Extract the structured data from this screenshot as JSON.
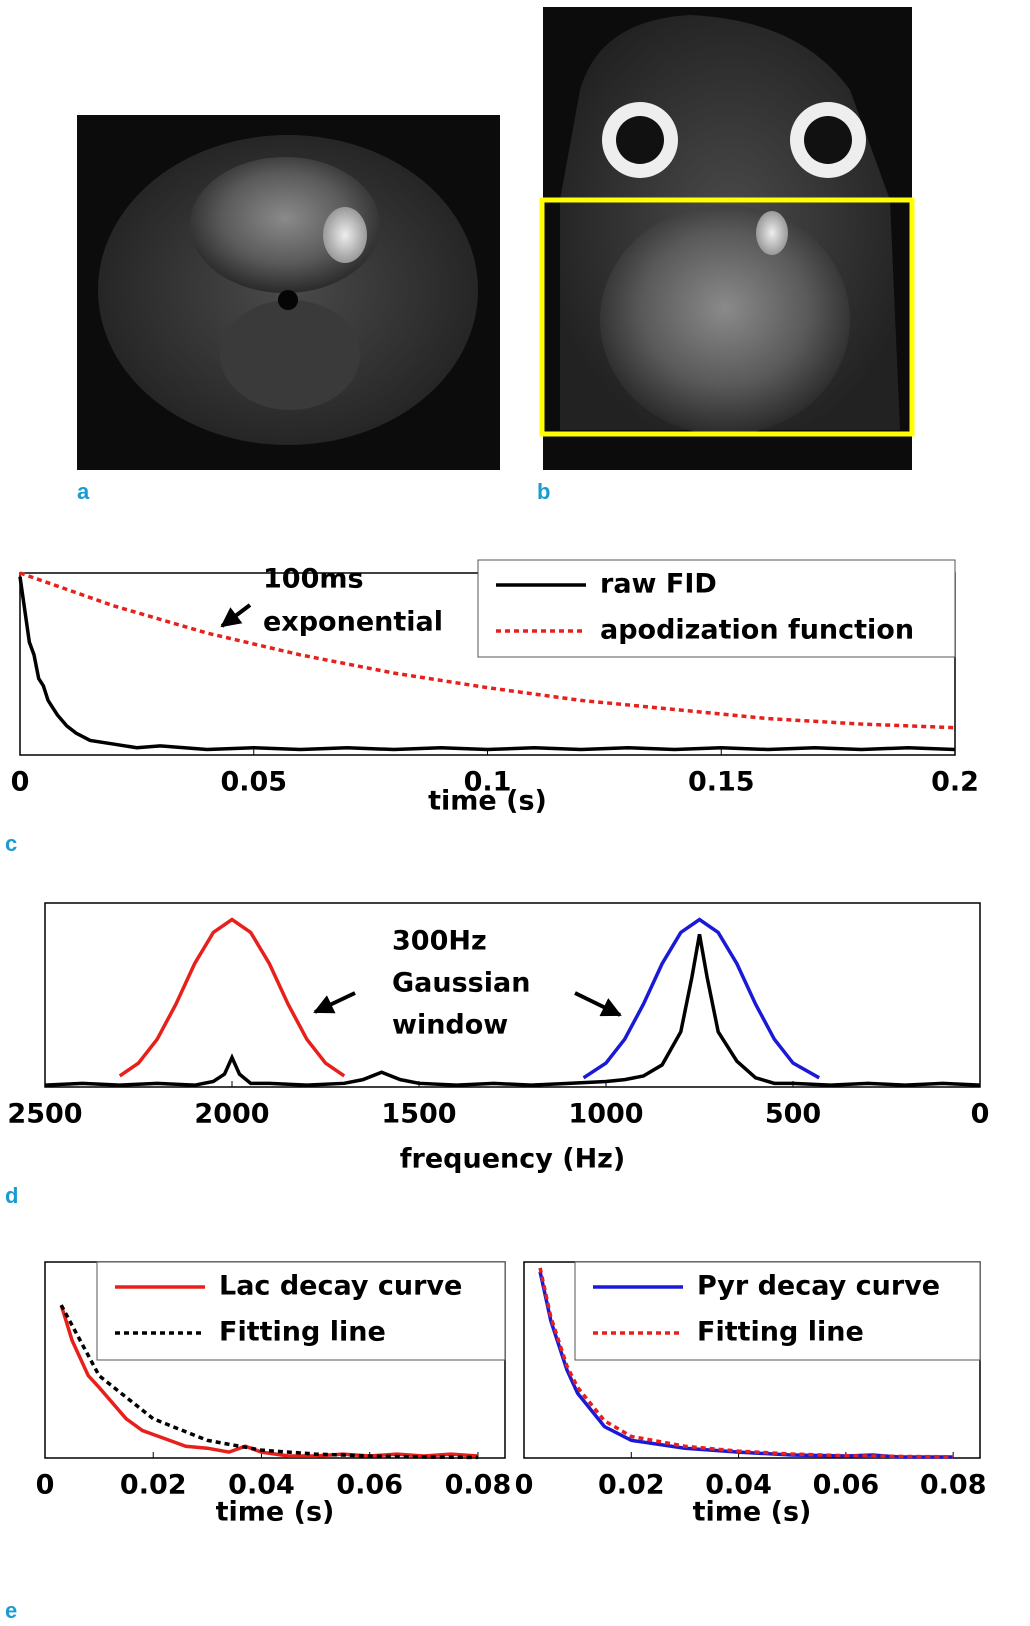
{
  "panel_labels": [
    "a",
    "b",
    "c",
    "d",
    "e"
  ],
  "chart_data": [
    {
      "type": "line",
      "xlabel": "time (s)",
      "annotation": [
        "100ms",
        "exponential"
      ],
      "xlim": [
        0,
        0.2
      ],
      "ylim": [
        0,
        1
      ],
      "xticks": [
        0,
        0.05,
        0.1,
        0.15,
        0.2
      ],
      "legend": "upper right",
      "series": [
        {
          "name": "raw FID",
          "color": "#000000",
          "style": "solid",
          "x": [
            0,
            0.001,
            0.002,
            0.003,
            0.004,
            0.005,
            0.006,
            0.008,
            0.01,
            0.012,
            0.015,
            0.02,
            0.025,
            0.03,
            0.04,
            0.05,
            0.06,
            0.07,
            0.08,
            0.09,
            0.1,
            0.11,
            0.12,
            0.13,
            0.14,
            0.15,
            0.16,
            0.17,
            0.18,
            0.19,
            0.2
          ],
          "values": [
            0.98,
            0.8,
            0.62,
            0.55,
            0.42,
            0.38,
            0.3,
            0.22,
            0.16,
            0.12,
            0.08,
            0.06,
            0.04,
            0.05,
            0.03,
            0.04,
            0.03,
            0.04,
            0.03,
            0.04,
            0.03,
            0.04,
            0.03,
            0.04,
            0.03,
            0.04,
            0.03,
            0.04,
            0.03,
            0.04,
            0.03
          ]
        },
        {
          "name": "apodization function",
          "color": "#e8201c",
          "style": "dotted",
          "x": [
            0,
            0.02,
            0.04,
            0.06,
            0.08,
            0.1,
            0.12,
            0.14,
            0.16,
            0.18,
            0.2
          ],
          "values": [
            1,
            0.82,
            0.67,
            0.55,
            0.45,
            0.37,
            0.3,
            0.25,
            0.2,
            0.17,
            0.15
          ]
        }
      ]
    },
    {
      "type": "line",
      "xlabel": "frequency (Hz)",
      "annotation": [
        "300Hz",
        "Gaussian",
        "window"
      ],
      "xlim": [
        2500,
        0
      ],
      "ylim": [
        0,
        1
      ],
      "xticks": [
        2500,
        2000,
        1500,
        1000,
        500,
        0
      ],
      "series": [
        {
          "color": "#000000",
          "style": "solid",
          "x": [
            2500,
            2400,
            2300,
            2200,
            2100,
            2050,
            2020,
            2000,
            1980,
            1950,
            1900,
            1800,
            1700,
            1650,
            1600,
            1550,
            1500,
            1400,
            1300,
            1200,
            1100,
            1000,
            950,
            900,
            850,
            800,
            770,
            750,
            730,
            700,
            650,
            600,
            550,
            500,
            400,
            300,
            200,
            100,
            0
          ],
          "values": [
            0.01,
            0.02,
            0.01,
            0.02,
            0.01,
            0.03,
            0.07,
            0.16,
            0.07,
            0.02,
            0.02,
            0.01,
            0.02,
            0.04,
            0.08,
            0.04,
            0.02,
            0.01,
            0.02,
            0.01,
            0.02,
            0.03,
            0.04,
            0.06,
            0.12,
            0.3,
            0.6,
            0.83,
            0.6,
            0.3,
            0.14,
            0.05,
            0.02,
            0.02,
            0.01,
            0.02,
            0.01,
            0.02,
            0.01
          ]
        },
        {
          "color": "#e8201c",
          "style": "solid",
          "x": [
            2300,
            2250,
            2200,
            2150,
            2100,
            2050,
            2000,
            1950,
            1900,
            1850,
            1800,
            1750,
            1700
          ],
          "values": [
            0.06,
            0.13,
            0.26,
            0.45,
            0.67,
            0.84,
            0.91,
            0.84,
            0.67,
            0.45,
            0.26,
            0.13,
            0.06
          ]
        },
        {
          "color": "#1a1ad6",
          "style": "solid",
          "x": [
            1060,
            1000,
            950,
            900,
            850,
            800,
            750,
            700,
            650,
            600,
            550,
            500,
            430
          ],
          "values": [
            0.05,
            0.13,
            0.26,
            0.45,
            0.67,
            0.84,
            0.91,
            0.84,
            0.67,
            0.45,
            0.26,
            0.13,
            0.05
          ]
        }
      ]
    },
    {
      "type": "line",
      "xlabel": "time (s)",
      "xlim": [
        0,
        0.085
      ],
      "ylim": [
        0,
        1
      ],
      "xticks": [
        0,
        0.02,
        0.04,
        0.06,
        0.08
      ],
      "legend": "upper right",
      "series": [
        {
          "name": "Lac decay curve",
          "color": "#e8201c",
          "style": "solid",
          "x": [
            0.003,
            0.005,
            0.008,
            0.01,
            0.015,
            0.018,
            0.022,
            0.026,
            0.03,
            0.034,
            0.037,
            0.04,
            0.045,
            0.05,
            0.055,
            0.06,
            0.065,
            0.07,
            0.075,
            0.08
          ],
          "values": [
            0.78,
            0.6,
            0.42,
            0.36,
            0.2,
            0.14,
            0.1,
            0.06,
            0.05,
            0.03,
            0.06,
            0.03,
            0.01,
            0.01,
            0.02,
            0.01,
            0.02,
            0.01,
            0.02,
            0.01
          ]
        },
        {
          "name": "Fitting line",
          "color": "#000000",
          "style": "dotted",
          "x": [
            0.003,
            0.01,
            0.02,
            0.03,
            0.04,
            0.05,
            0.06,
            0.07,
            0.08
          ],
          "values": [
            0.78,
            0.42,
            0.2,
            0.09,
            0.04,
            0.02,
            0.01,
            0.005,
            0.003
          ]
        }
      ]
    },
    {
      "type": "line",
      "xlabel": "time (s)",
      "xlim": [
        0,
        0.085
      ],
      "ylim": [
        0,
        1
      ],
      "xticks": [
        0,
        0.02,
        0.04,
        0.06,
        0.08
      ],
      "legend": "upper right",
      "series": [
        {
          "name": "Pyr decay curve",
          "color": "#1a1ad6",
          "style": "solid",
          "x": [
            0.003,
            0.005,
            0.008,
            0.01,
            0.015,
            0.02,
            0.03,
            0.04,
            0.05,
            0.06,
            0.065,
            0.07,
            0.08
          ],
          "values": [
            0.95,
            0.7,
            0.45,
            0.33,
            0.16,
            0.09,
            0.05,
            0.03,
            0.015,
            0.01,
            0.015,
            0.005,
            0.005
          ]
        },
        {
          "name": "Fitting line",
          "color": "#e8201c",
          "style": "dotted",
          "x": [
            0.003,
            0.005,
            0.008,
            0.01,
            0.015,
            0.02,
            0.03,
            0.04,
            0.05,
            0.06,
            0.07,
            0.08
          ],
          "values": [
            0.97,
            0.72,
            0.47,
            0.36,
            0.19,
            0.11,
            0.06,
            0.035,
            0.02,
            0.012,
            0.008,
            0.006
          ]
        }
      ]
    }
  ]
}
